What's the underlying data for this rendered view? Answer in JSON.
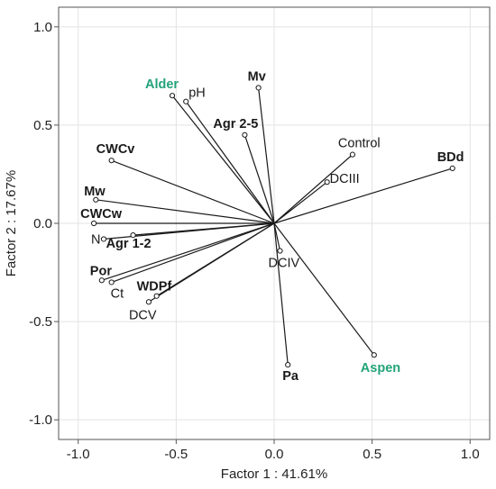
{
  "chart_data": {
    "type": "scatter",
    "xlabel": "Factor 1 : 41.61%",
    "ylabel": "Factor 2 : 17.67%",
    "xlim": [
      -1.1,
      1.1
    ],
    "ylim": [
      -1.1,
      1.1
    ],
    "xticks": [
      "-1.0",
      "-0.5",
      "0.0",
      "0.5",
      "1.0"
    ],
    "yticks": [
      "1.0",
      "0.5",
      "0.0",
      "-0.5",
      "-1.0"
    ],
    "grid": true,
    "vectors_from_origin": true,
    "points": [
      {
        "label": "Alder",
        "x": -0.52,
        "y": 0.65,
        "style": "green"
      },
      {
        "label": "pH",
        "x": -0.45,
        "y": 0.62,
        "style": "normal"
      },
      {
        "label": "Mv",
        "x": -0.08,
        "y": 0.69,
        "style": "bold"
      },
      {
        "label": "Agr 2-5",
        "x": -0.15,
        "y": 0.45,
        "style": "bold"
      },
      {
        "label": "Control",
        "x": 0.4,
        "y": 0.35,
        "style": "normal"
      },
      {
        "label": "DCIII",
        "x": 0.27,
        "y": 0.21,
        "style": "normal"
      },
      {
        "label": "BDd",
        "x": 0.91,
        "y": 0.28,
        "style": "bold"
      },
      {
        "label": "CWCv",
        "x": -0.83,
        "y": 0.32,
        "style": "bold"
      },
      {
        "label": "Mw",
        "x": -0.91,
        "y": 0.12,
        "style": "bold"
      },
      {
        "label": "CWCw",
        "x": -0.92,
        "y": 0.0,
        "style": "bold"
      },
      {
        "label": "N",
        "x": -0.87,
        "y": -0.08,
        "style": "normal"
      },
      {
        "label": "Agr 1-2",
        "x": -0.72,
        "y": -0.06,
        "style": "bold"
      },
      {
        "label": "Por",
        "x": -0.88,
        "y": -0.29,
        "style": "bold"
      },
      {
        "label": "Ct",
        "x": -0.83,
        "y": -0.3,
        "style": "normal"
      },
      {
        "label": "WDPf",
        "x": -0.6,
        "y": -0.37,
        "style": "bold"
      },
      {
        "label": "DCV",
        "x": -0.64,
        "y": -0.4,
        "style": "normal"
      },
      {
        "label": "DCIV",
        "x": 0.03,
        "y": -0.14,
        "style": "normal"
      },
      {
        "label": "Pa",
        "x": 0.07,
        "y": -0.72,
        "style": "bold"
      },
      {
        "label": "Aspen",
        "x": 0.51,
        "y": -0.67,
        "style": "green"
      }
    ]
  }
}
